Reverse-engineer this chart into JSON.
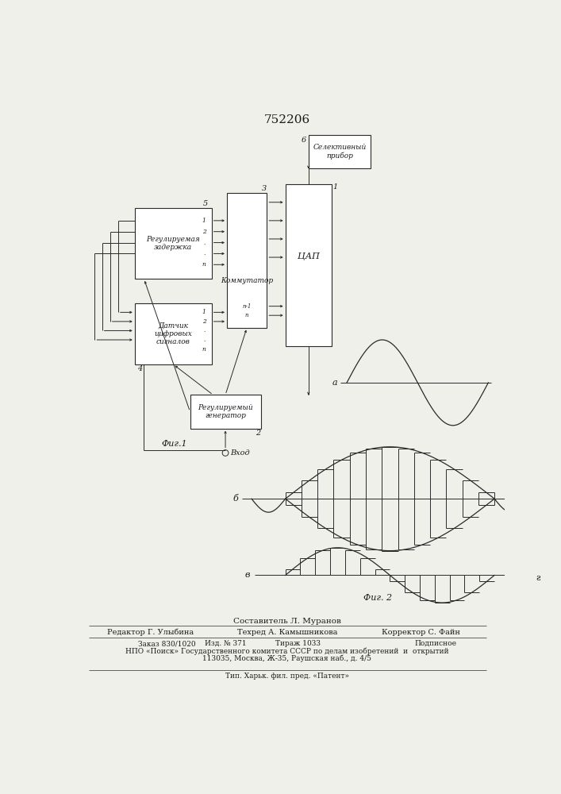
{
  "title": "752206",
  "bg_color": "#f0f0eb",
  "line_color": "#2a2a2a",
  "text_color": "#1a1a1a",
  "box_color": "#ffffff",
  "fig1_label": "Фиг.1",
  "fig2_label": "Фиг. 2",
  "block_rz": "Регулируемая\nзадержка",
  "block_km": "Коммутатор",
  "block_cap": "ЦАП",
  "block_dt": "Датчик\nцифровых\nсигналов",
  "block_gen": "Регулируемый\nгенератор",
  "block_sel": "Селективный\nприбор",
  "label_a": "а",
  "label_b": "б",
  "label_v": "в",
  "label_vhod": "Вход",
  "footer_sestavitel": "Составитель Л. Муранов",
  "footer_editor": "Редактор Г. Улыбина",
  "footer_tehred": "Техред А. Камышникова",
  "footer_korrektor": "Корректор С. Файн",
  "footer_zakaz": "Заказ 830/1020",
  "footer_izd": "Изд. № 371",
  "footer_tirazh": "Тираж 1033",
  "footer_podpisnoe": "Подписное",
  "footer_npo": "НПО «Поиск» Государственного комитета СССР по делам изобретений  и  открытий",
  "footer_addr": "113035, Москва, Ж-35, Раушская наб., д. 4/5",
  "footer_tip": "Тип. Харьк. фил. пред. «Патент»"
}
